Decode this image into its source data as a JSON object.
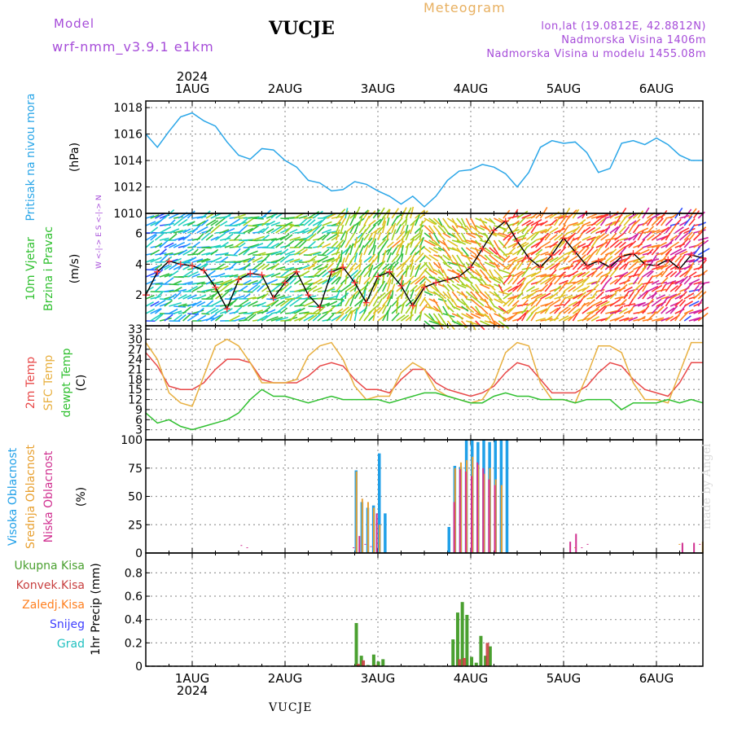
{
  "header": {
    "model_label": "Model",
    "model_name": "wrf-nmm_v3.9.1 e1km",
    "station": "VUCJE",
    "meteogram": "Meteogram",
    "lonlat": "lon,lat (19.0812E, 42.8812N)",
    "altitude": "Nadmorska Visina 1406m",
    "model_altitude": "Nadmorska Visina u modelu 1455.08m"
  },
  "footer": {
    "station": "VUCJE",
    "watermark": "made by Angel"
  },
  "time_axis": {
    "year": "2024",
    "days": [
      "1AUG",
      "2AUG",
      "3AUG",
      "4AUG",
      "5AUG",
      "6AUG"
    ],
    "start_hour": -12,
    "end_hour": 132
  },
  "colors": {
    "pressure": "#2aa6e8",
    "t2m": "#e84848",
    "sfc": "#e8b040",
    "dewpt": "#30c030",
    "high_cloud": "#20a0e8",
    "mid_cloud": "#e8a030",
    "low_cloud": "#d03090",
    "total_precip": "#4aa030",
    "convective": "#c84040",
    "frozen": "#ff8020",
    "snow": "#4040ff",
    "hail": "#20c0c0"
  },
  "chart_data": [
    {
      "type": "line",
      "panel": "pressure",
      "ylabel": "Pritisak na nivou mora",
      "unit": "(hPa)",
      "ylim": [
        1010,
        1018.5
      ],
      "yticks": [
        1010,
        1012,
        1014,
        1016,
        1018
      ],
      "series": [
        {
          "x": [
            -12,
            -9,
            -6,
            -3,
            0,
            3,
            6,
            9,
            12,
            15,
            18,
            21,
            24,
            27,
            30,
            33,
            36,
            39,
            42,
            45,
            48,
            51,
            54,
            57,
            60,
            63,
            66,
            69,
            72,
            75,
            78,
            81,
            84,
            87,
            90,
            93,
            96,
            99,
            102,
            105,
            108,
            111,
            114,
            117,
            120,
            123,
            126,
            129,
            132
          ],
          "values": [
            1016.0,
            1015.0,
            1016.2,
            1017.3,
            1017.6,
            1017.0,
            1016.6,
            1015.4,
            1014.4,
            1014.1,
            1014.9,
            1014.8,
            1014.0,
            1013.5,
            1012.5,
            1012.3,
            1011.7,
            1011.8,
            1012.4,
            1012.2,
            1011.7,
            1011.3,
            1010.7,
            1011.3,
            1010.5,
            1011.3,
            1012.5,
            1013.2,
            1013.3,
            1013.7,
            1013.5,
            1013.0,
            1012.0,
            1013.1,
            1015.0,
            1015.5,
            1015.3,
            1015.4,
            1014.6,
            1013.1,
            1013.4,
            1015.3,
            1015.5,
            1015.2,
            1015.7,
            1015.2,
            1014.4,
            1014.0,
            1014.0
          ]
        }
      ]
    },
    {
      "type": "line",
      "panel": "wind",
      "ylabel": "10m Vjetar Brzina i Pravac",
      "unit": "(m/s)",
      "ylim": [
        0,
        7.3
      ],
      "yticks": [
        2,
        4,
        6
      ],
      "compass": "W <-|-> E   S <-|-> N",
      "series": [
        {
          "name": "speed",
          "x": [
            -12,
            -9,
            -6,
            -3,
            0,
            3,
            6,
            9,
            12,
            15,
            18,
            21,
            24,
            27,
            30,
            33,
            36,
            39,
            42,
            45,
            48,
            51,
            54,
            57,
            60,
            63,
            66,
            69,
            72,
            75,
            78,
            81,
            84,
            87,
            90,
            93,
            96,
            99,
            102,
            105,
            108,
            111,
            114,
            117,
            120,
            123,
            126,
            129,
            132
          ],
          "values": [
            2.0,
            3.5,
            4.2,
            4.0,
            3.9,
            3.6,
            2.5,
            1.1,
            3.0,
            3.4,
            3.3,
            1.8,
            2.8,
            3.5,
            2.0,
            1.2,
            3.5,
            3.8,
            2.8,
            1.5,
            3.2,
            3.5,
            2.6,
            1.3,
            2.5,
            2.8,
            3.0,
            3.2,
            3.8,
            5.0,
            6.2,
            6.8,
            5.5,
            4.4,
            3.8,
            4.6,
            5.7,
            4.8,
            3.9,
            4.2,
            3.8,
            4.5,
            4.7,
            4.0,
            3.9,
            4.3,
            3.7,
            4.6,
            4.4
          ]
        }
      ]
    },
    {
      "type": "line",
      "panel": "temperature",
      "ylabels": [
        "2m Temp",
        "SFC Temp",
        "dewpt Temp"
      ],
      "unit": "(C)",
      "ylim": [
        0,
        34
      ],
      "yticks": [
        3,
        6,
        9,
        12,
        15,
        18,
        21,
        24,
        27,
        30,
        33
      ],
      "x": [
        -12,
        -9,
        -6,
        -3,
        0,
        3,
        6,
        9,
        12,
        15,
        18,
        21,
        24,
        27,
        30,
        33,
        36,
        39,
        42,
        45,
        48,
        51,
        54,
        57,
        60,
        63,
        66,
        69,
        72,
        75,
        78,
        81,
        84,
        87,
        90,
        93,
        96,
        99,
        102,
        105,
        108,
        111,
        114,
        117,
        120,
        123,
        126,
        129,
        132
      ],
      "series": [
        {
          "name": "2m Temp",
          "values": [
            26,
            22,
            16,
            15,
            15,
            17,
            21,
            24,
            24,
            23,
            18,
            17,
            17,
            17,
            19,
            22,
            23,
            22,
            18,
            15,
            15,
            14,
            18,
            21,
            21,
            17,
            15,
            14,
            13,
            14,
            16,
            20,
            23,
            22,
            18,
            14,
            14,
            14,
            16,
            20,
            23,
            22,
            18,
            15,
            14,
            13,
            17,
            23,
            23
          ]
        },
        {
          "name": "SFC Temp",
          "values": [
            29,
            24,
            14,
            11,
            10,
            19,
            28,
            30,
            28,
            23,
            17,
            17,
            17,
            18,
            25,
            28,
            29,
            24,
            16,
            12,
            13,
            13,
            20,
            23,
            21,
            15,
            13,
            12,
            11,
            12,
            17,
            26,
            29,
            28,
            17,
            12,
            12,
            11,
            19,
            28,
            28,
            26,
            17,
            12,
            12,
            11,
            20,
            29,
            29
          ]
        },
        {
          "name": "dewpt Temp",
          "values": [
            8,
            5,
            6,
            4,
            3,
            4,
            5,
            6,
            8,
            12,
            15,
            13,
            13,
            12,
            11,
            12,
            13,
            12,
            12,
            12,
            12,
            11,
            12,
            13,
            14,
            14,
            13,
            12,
            11,
            11,
            13,
            14,
            13,
            13,
            12,
            12,
            12,
            11,
            12,
            12,
            12,
            9,
            11,
            11,
            11,
            12,
            11,
            12,
            11
          ]
        }
      ]
    },
    {
      "type": "bar",
      "panel": "clouds",
      "ylabels": [
        "Visoka Oblacnost",
        "Srednja Oblacnost",
        "Niska Oblacnost"
      ],
      "unit": "(%)",
      "ylim": [
        0,
        100
      ],
      "yticks": [
        0,
        25,
        50,
        75,
        100
      ],
      "series": [
        {
          "name": "Visoka Oblacnost",
          "x": [
            42,
            43.5,
            45,
            46.5,
            48,
            49.5,
            66,
            67.5,
            69,
            70.5,
            72,
            73.5,
            75,
            76.5,
            78,
            79.5,
            81
          ],
          "values": [
            73,
            45,
            40,
            42,
            88,
            35,
            23,
            77,
            76,
            100,
            100,
            98,
            100,
            98,
            100,
            100,
            100
          ]
        },
        {
          "name": "Srednja Oblacnost",
          "x": [
            42,
            43.5,
            45,
            46.5,
            48,
            67.5,
            69,
            70.5,
            72,
            73.5,
            75,
            76.5,
            78,
            79.5,
            98.5,
            125.5,
            131.5
          ],
          "values": [
            72,
            48,
            45,
            40,
            25,
            75,
            80,
            82,
            85,
            78,
            70,
            75,
            65,
            60,
            5,
            8,
            10
          ]
        },
        {
          "name": "Niska Oblacnost",
          "x": [
            12,
            13.5,
            41,
            42.5,
            44,
            45.5,
            47,
            67,
            68.5,
            70,
            71.5,
            73,
            74.5,
            76,
            77.5,
            97,
            98.5,
            100,
            101.5,
            126,
            129,
            130.5
          ],
          "values": [
            7,
            5,
            5,
            15,
            8,
            6,
            35,
            45,
            74,
            72,
            68,
            80,
            75,
            65,
            60,
            10,
            17,
            5,
            8,
            9,
            9,
            8
          ]
        }
      ]
    },
    {
      "type": "bar",
      "panel": "precipitation",
      "ylabels": [
        "Ukupna Kisa",
        "Konvek.Kisa",
        "Zaledj.Kisa",
        "Snijeg",
        "Grad"
      ],
      "axis_label": "1hr Precip (mm)",
      "ylim": [
        0,
        0.97
      ],
      "yticks": [
        0,
        0.2,
        0.4,
        0.6,
        0.8
      ],
      "series": [
        {
          "name": "Ukupna Kisa",
          "x": [
            42,
            43.3,
            45,
            46.5,
            47.7,
            48.9,
            67,
            68.2,
            69.4,
            70.6,
            71.8,
            73,
            74.2,
            75.4,
            76.6
          ],
          "values": [
            0.37,
            0.09,
            0.01,
            0.1,
            0.04,
            0.06,
            0.23,
            0.46,
            0.55,
            0.44,
            0.08,
            0.03,
            0.26,
            0.09,
            0.17
          ]
        },
        {
          "name": "Konvek.Kisa",
          "x": [
            42.5,
            43.8,
            47,
            68.7,
            69.9,
            75.9
          ],
          "values": [
            0.02,
            0.05,
            0.01,
            0.06,
            0.07,
            0.2
          ]
        }
      ]
    }
  ]
}
